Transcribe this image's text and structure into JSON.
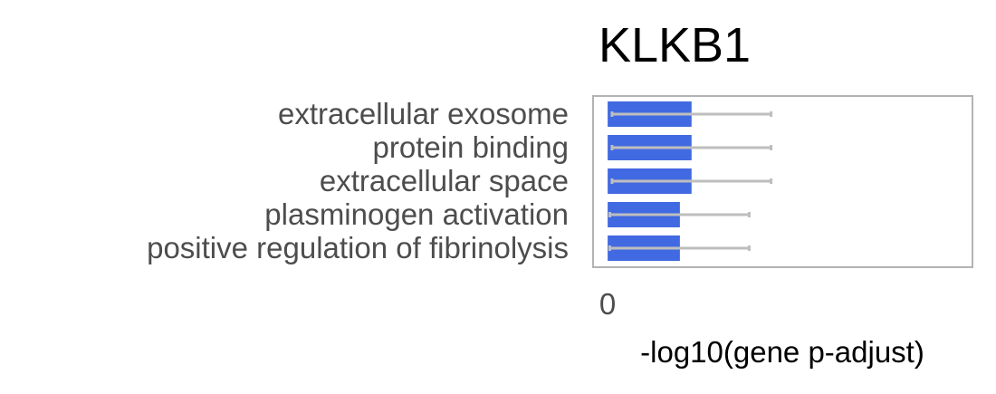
{
  "chart_data": {
    "type": "bar",
    "orientation": "horizontal",
    "title": "KLKB1",
    "xlabel": "-log10(gene p-adjust)",
    "ylabel": "",
    "categories": [
      "extracellular exosome",
      "protein binding",
      "extracellular space",
      "plasminogen activation",
      "positive regulation of fibrinolysis"
    ],
    "values": [
      1.15,
      1.15,
      1.15,
      0.99,
      0.99
    ],
    "error_low": [
      0.06,
      0.06,
      0.06,
      0.03,
      0.03
    ],
    "error_high": [
      2.24,
      2.24,
      2.24,
      1.94,
      1.94
    ],
    "xlim": [
      -0.2,
      5.0
    ],
    "xticks": [
      "0"
    ],
    "grid": false,
    "legend": "none",
    "bar_color": "#4169e1",
    "error_color": "#bebebe",
    "frame_color": "#b3b3b3"
  }
}
